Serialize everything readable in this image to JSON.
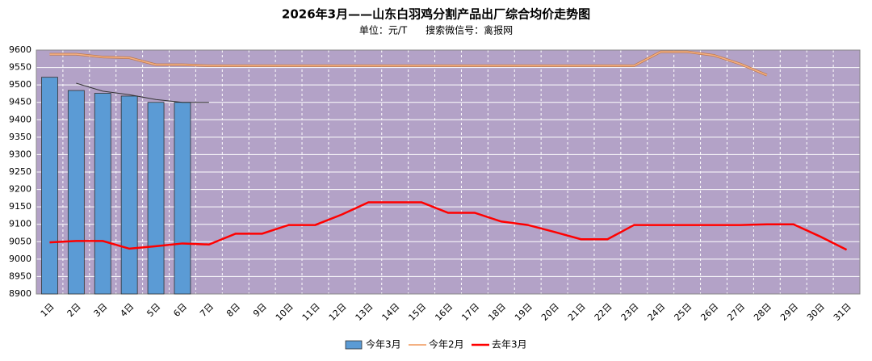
{
  "chart_data": {
    "type": "bar_line",
    "title": "2026年3月——山东白羽鸡分割产品出厂综合均价走势图",
    "subtitle": "单位：元/T      搜索微信号：禽报网",
    "categories": [
      "1日",
      "2日",
      "3日",
      "4日",
      "5日",
      "6日",
      "7日",
      "8日",
      "9日",
      "10日",
      "11日",
      "12日",
      "13日",
      "14日",
      "15日",
      "16日",
      "17日",
      "18日",
      "19日",
      "20日",
      "21日",
      "22日",
      "23日",
      "24日",
      "25日",
      "26日",
      "27日",
      "28日",
      "29日",
      "30日",
      "31日"
    ],
    "series": [
      {
        "name": "今年3月",
        "kind": "bar",
        "color": "#5b9bd5",
        "values": [
          9522,
          9484,
          9476,
          9468,
          9450,
          9450,
          null,
          null,
          null,
          null,
          null,
          null,
          null,
          null,
          null,
          null,
          null,
          null,
          null,
          null,
          null,
          null,
          null,
          null,
          null,
          null,
          null,
          null,
          null,
          null,
          null
        ]
      },
      {
        "name": "今年2月",
        "kind": "line",
        "color": "#f4b183",
        "values": [
          9588,
          9588,
          9580,
          9578,
          9558,
          9558,
          9555,
          9555,
          9555,
          9555,
          9555,
          9555,
          9555,
          9555,
          9555,
          9555,
          9555,
          9555,
          9555,
          9555,
          9555,
          9555,
          9555,
          9595,
          9595,
          9585,
          9560,
          9528,
          null,
          null,
          null
        ]
      },
      {
        "name": "去年3月",
        "kind": "line",
        "color": "#ff0000",
        "values": [
          9048,
          9052,
          9052,
          9030,
          9037,
          9045,
          9042,
          9073,
          9073,
          9098,
          9098,
          9128,
          9163,
          9163,
          9163,
          9133,
          9133,
          9108,
          9098,
          9078,
          9057,
          9057,
          9098,
          9098,
          9098,
          9098,
          9098,
          9100,
          9100,
          9065,
          9027
        ]
      }
    ],
    "trend": {
      "color": "#333333",
      "values": [
        null,
        9505,
        9482,
        9472,
        9458,
        9450,
        9450,
        null,
        null,
        null,
        null,
        null,
        null,
        null,
        null,
        null,
        null,
        null,
        null,
        null,
        null,
        null,
        null,
        null,
        null,
        null,
        null,
        null,
        null,
        null,
        null
      ]
    },
    "ylim": [
      8900,
      9600
    ],
    "yticks": [
      8900,
      8950,
      9000,
      9050,
      9100,
      9150,
      9200,
      9250,
      9300,
      9350,
      9400,
      9450,
      9500,
      9550,
      9600
    ],
    "grid": true,
    "legend": "bottom"
  }
}
